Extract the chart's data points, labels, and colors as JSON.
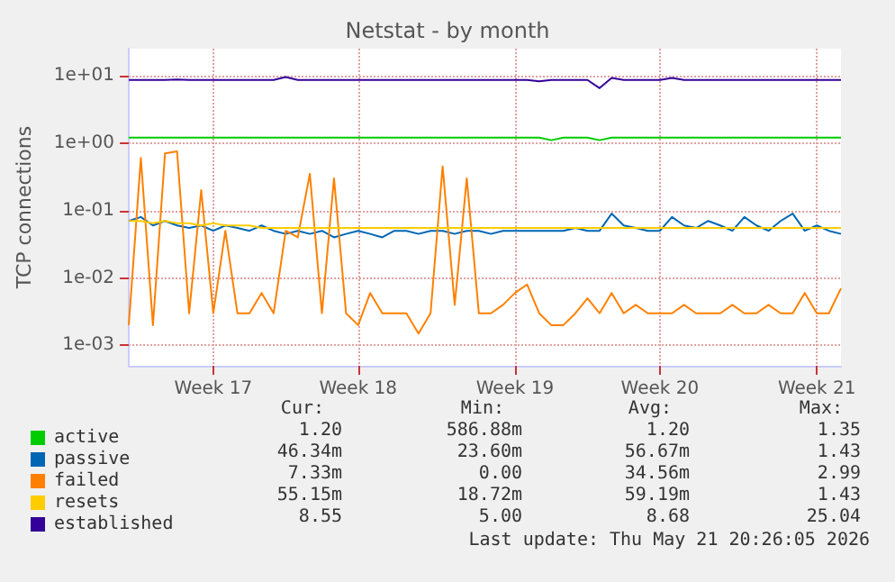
{
  "chart_data": {
    "type": "line",
    "title": "Netstat - by month",
    "ylabel": "TCP connections",
    "categories": [
      null,
      null,
      null,
      null,
      null,
      null,
      null,
      "Week 17",
      null,
      null,
      null,
      null,
      null,
      null,
      null,
      null,
      null,
      null,
      null,
      "Week 18",
      null,
      null,
      null,
      null,
      null,
      null,
      null,
      null,
      null,
      null,
      null,
      null,
      "Week 19",
      null,
      null,
      null,
      null,
      null,
      null,
      null,
      null,
      null,
      null,
      null,
      "Week 20",
      null,
      null,
      null,
      null,
      null,
      null,
      null,
      null,
      null,
      null,
      null,
      null,
      "Week 21",
      null,
      null
    ],
    "series": [
      {
        "name": "active",
        "color": "#00cc00",
        "values": [
          1.2,
          1.2,
          1.2,
          1.2,
          1.2,
          1.2,
          1.2,
          1.2,
          1.2,
          1.2,
          1.2,
          1.2,
          1.2,
          1.2,
          1.2,
          1.2,
          1.2,
          1.2,
          1.2,
          1.2,
          1.2,
          1.2,
          1.2,
          1.2,
          1.2,
          1.2,
          1.2,
          1.2,
          1.2,
          1.2,
          1.2,
          1.2,
          1.2,
          1.2,
          1.2,
          1.1,
          1.2,
          1.2,
          1.2,
          1.1,
          1.2,
          1.2,
          1.2,
          1.2,
          1.2,
          1.2,
          1.2,
          1.2,
          1.2,
          1.2,
          1.2,
          1.2,
          1.2,
          1.2,
          1.2,
          1.2,
          1.2,
          1.2,
          1.2,
          1.2
        ]
      },
      {
        "name": "passive",
        "color": "#0066b3",
        "values": [
          0.07,
          0.08,
          0.06,
          0.07,
          0.06,
          0.055,
          0.06,
          0.05,
          0.06,
          0.055,
          0.05,
          0.06,
          0.05,
          0.045,
          0.05,
          0.045,
          0.05,
          0.04,
          0.045,
          0.05,
          0.045,
          0.04,
          0.05,
          0.05,
          0.045,
          0.05,
          0.05,
          0.045,
          0.05,
          0.05,
          0.045,
          0.05,
          0.05,
          0.05,
          0.05,
          0.05,
          0.05,
          0.055,
          0.05,
          0.05,
          0.09,
          0.06,
          0.055,
          0.05,
          0.05,
          0.08,
          0.06,
          0.055,
          0.07,
          0.06,
          0.05,
          0.08,
          0.06,
          0.05,
          0.07,
          0.09,
          0.05,
          0.06,
          0.05,
          0.045
        ]
      },
      {
        "name": "failed",
        "color": "#ff8000",
        "values": [
          0.002,
          0.6,
          0.002,
          0.7,
          0.75,
          0.003,
          0.2,
          0.003,
          0.05,
          0.003,
          0.003,
          0.006,
          0.003,
          0.05,
          0.04,
          0.35,
          0.003,
          0.3,
          0.003,
          0.002,
          0.006,
          0.003,
          0.003,
          0.003,
          0.0015,
          0.003,
          0.45,
          0.004,
          0.3,
          0.003,
          0.003,
          0.004,
          0.006,
          0.008,
          0.003,
          0.002,
          0.002,
          0.003,
          0.005,
          0.003,
          0.006,
          0.003,
          0.004,
          0.003,
          0.003,
          0.003,
          0.004,
          0.003,
          0.003,
          0.003,
          0.004,
          0.003,
          0.003,
          0.004,
          0.003,
          0.003,
          0.006,
          0.003,
          0.003,
          0.007
        ]
      },
      {
        "name": "resets",
        "color": "#ffcc00",
        "values": [
          0.07,
          0.07,
          0.065,
          0.07,
          0.065,
          0.065,
          0.06,
          0.065,
          0.06,
          0.06,
          0.06,
          0.055,
          0.055,
          0.055,
          0.055,
          0.055,
          0.055,
          0.055,
          0.055,
          0.055,
          0.055,
          0.055,
          0.055,
          0.055,
          0.055,
          0.055,
          0.055,
          0.055,
          0.055,
          0.055,
          0.055,
          0.055,
          0.055,
          0.055,
          0.055,
          0.055,
          0.055,
          0.055,
          0.055,
          0.055,
          0.055,
          0.055,
          0.055,
          0.055,
          0.055,
          0.055,
          0.055,
          0.055,
          0.055,
          0.055,
          0.055,
          0.055,
          0.055,
          0.055,
          0.055,
          0.055,
          0.055,
          0.055,
          0.055,
          0.055
        ]
      },
      {
        "name": "established",
        "color": "#330099",
        "values": [
          8.6,
          8.6,
          8.6,
          8.6,
          8.7,
          8.6,
          8.6,
          8.6,
          8.6,
          8.6,
          8.6,
          8.6,
          8.6,
          9.5,
          8.6,
          8.6,
          8.6,
          8.6,
          8.6,
          8.6,
          8.6,
          8.6,
          8.6,
          8.6,
          8.6,
          8.6,
          8.6,
          8.6,
          8.6,
          8.6,
          8.6,
          8.6,
          8.6,
          8.6,
          8.2,
          8.6,
          8.6,
          8.6,
          8.6,
          6.5,
          9.2,
          8.6,
          8.6,
          8.6,
          8.6,
          9.2,
          8.6,
          8.6,
          8.6,
          8.6,
          8.6,
          8.6,
          8.6,
          8.6,
          8.6,
          8.6,
          8.6,
          8.6,
          8.6,
          8.6
        ]
      }
    ],
    "log": "y",
    "ylim": [
      0.0005,
      25
    ],
    "yticks": [
      {
        "value": 0.001,
        "label": "1e-03"
      },
      {
        "value": 0.01,
        "label": "1e-02"
      },
      {
        "value": 0.1,
        "label": "1e-01"
      },
      {
        "value": 1,
        "label": "1e+00"
      },
      {
        "value": 10,
        "label": "1e+01"
      }
    ],
    "grid": true,
    "legend": "bottom left",
    "marker": "none",
    "line_style": "solid",
    "annotations": [
      "Cur:",
      "Min:",
      "Avg:",
      "Max:",
      "1.20",
      "586.88m",
      "1.20",
      "1.35",
      "46.34m",
      "23.60m",
      "56.67m",
      "1.43",
      "7.33m",
      "0.00",
      "34.56m",
      "2.99",
      "55.15m",
      "18.72m",
      "59.19m",
      "1.43",
      "8.55",
      "5.00",
      "8.68",
      "25.04",
      "Last update: Thu May 21 20:26:05 2026"
    ]
  }
}
